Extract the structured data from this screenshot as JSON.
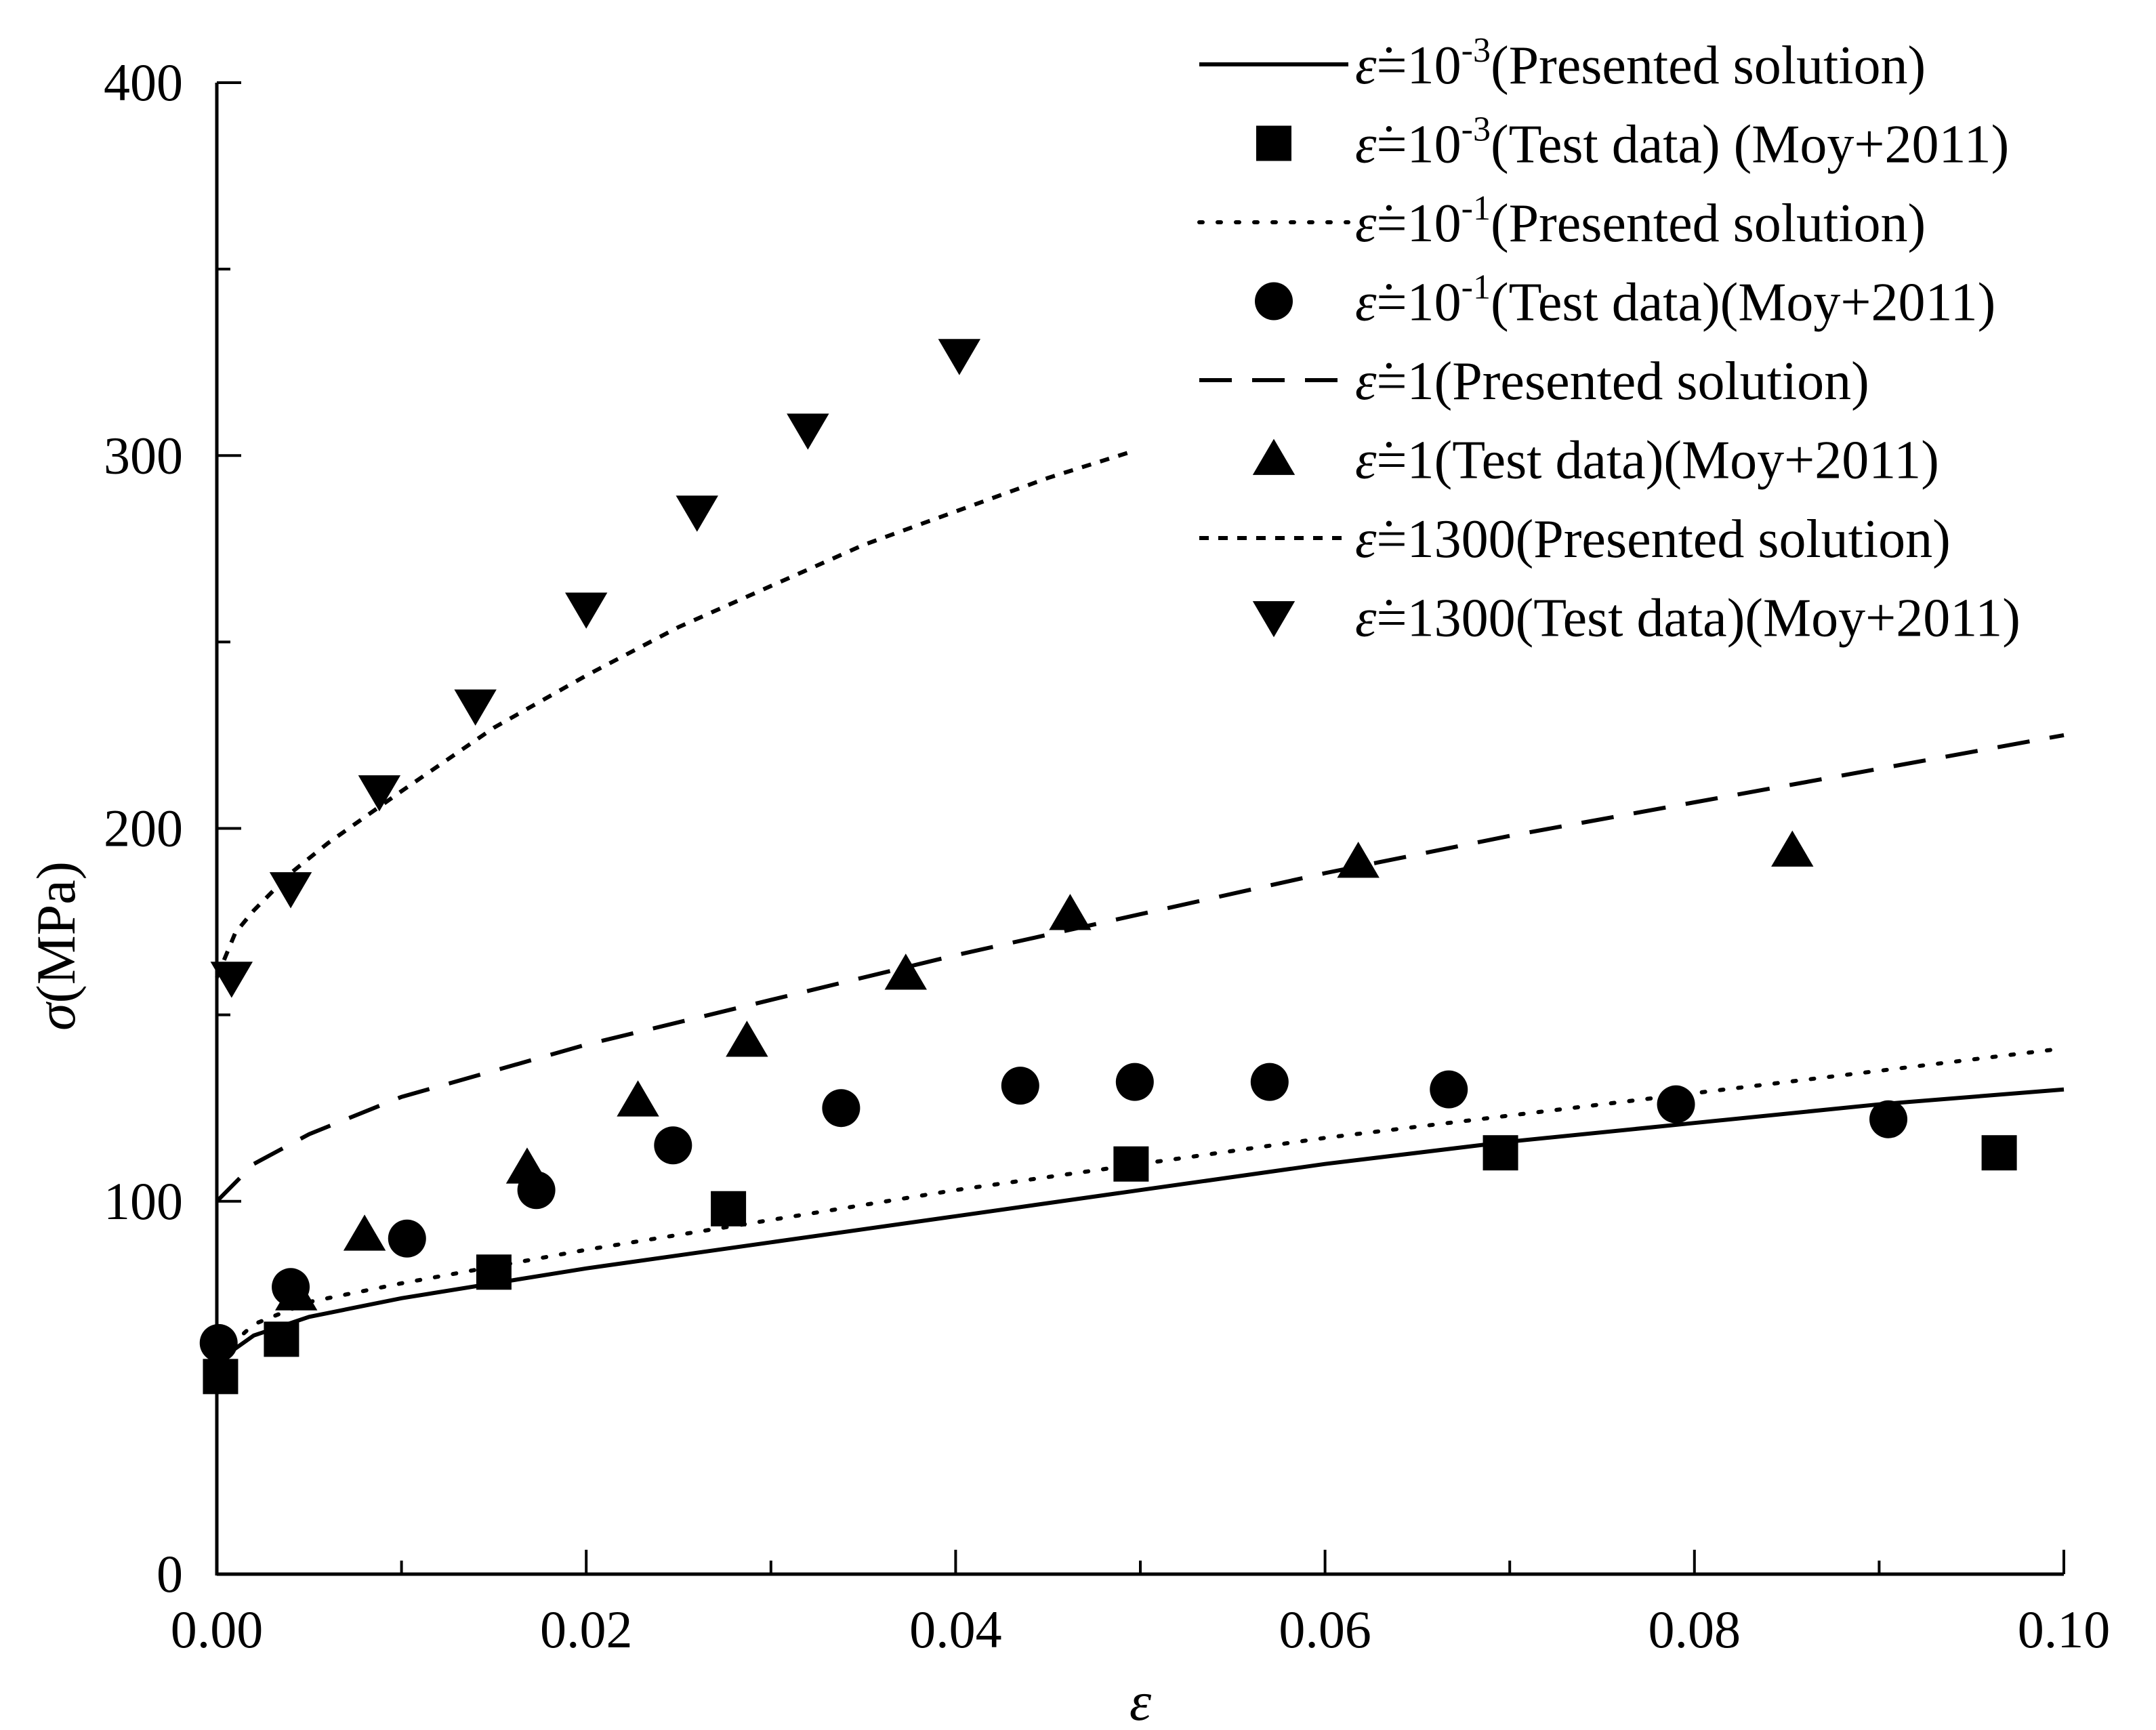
{
  "chart_data": {
    "type": "line",
    "xlabel": "ε",
    "ylabel_symbol": "σ",
    "ylabel_unit": "(MPa)",
    "xlim": [
      0,
      0.1
    ],
    "ylim": [
      0,
      400
    ],
    "x_ticks": [
      0,
      0.02,
      0.04,
      0.06,
      0.08,
      0.1
    ],
    "x_tick_labels": [
      "0.00",
      "0.02",
      "0.04",
      "0.06",
      "0.08",
      "0.10"
    ],
    "y_ticks": [
      0,
      100,
      200,
      300,
      400
    ],
    "y_tick_labels": [
      "0",
      "100",
      "200",
      "300",
      "400"
    ],
    "grid": false,
    "legend_position": "top-right",
    "series": [
      {
        "kind": "line",
        "style": "solid",
        "rate_symbol": "ε̇",
        "rate": "=10",
        "exponent": "-3",
        "label": "(Presented solution)",
        "x": [
          0,
          0.002,
          0.005,
          0.01,
          0.02,
          0.03,
          0.04,
          0.05,
          0.06,
          0.07,
          0.08,
          0.09,
          0.1
        ],
        "y": [
          57,
          64,
          69,
          74,
          82,
          89,
          96,
          103,
          110,
          116,
          121,
          126,
          130
        ]
      },
      {
        "kind": "marker",
        "marker": "square",
        "rate_symbol": "ε̇",
        "rate": "=10",
        "exponent": "-3",
        "label": "(Test data) (Moy+2011)",
        "x": [
          0.0002,
          0.0035,
          0.015,
          0.0277,
          0.0495,
          0.0695,
          0.0965
        ],
        "y": [
          53,
          63,
          81,
          98,
          110,
          113,
          113
        ]
      },
      {
        "kind": "line",
        "style": "dotted",
        "rate_symbol": "ε̇",
        "rate": "=10",
        "exponent": "-1",
        "label": "(Presented solution)",
        "x": [
          0,
          0.002,
          0.005,
          0.01,
          0.02,
          0.03,
          0.04,
          0.05,
          0.06,
          0.07,
          0.08,
          0.09,
          0.1
        ],
        "y": [
          58,
          67,
          73,
          78,
          87,
          95,
          103,
          110,
          117,
          123,
          129,
          135,
          141
        ]
      },
      {
        "kind": "marker",
        "marker": "circle",
        "rate_symbol": "ε̇",
        "rate": "=10",
        "exponent": "-1",
        "label": "(Test data)(Moy+2011)",
        "x": [
          0.0001,
          0.004,
          0.0103,
          0.0173,
          0.0247,
          0.0338,
          0.0435,
          0.0497,
          0.057,
          0.0667,
          0.079,
          0.0905
        ],
        "y": [
          62,
          77,
          90,
          103,
          115,
          125,
          131,
          132,
          132,
          130,
          126,
          122
        ]
      },
      {
        "kind": "line",
        "style": "dashed",
        "rate_symbol": "ε̇",
        "rate": "=1",
        "exponent": "",
        "label": "(Presented solution)",
        "x": [
          0,
          0.002,
          0.005,
          0.01,
          0.015,
          0.02,
          0.03,
          0.04,
          0.05,
          0.06,
          0.07,
          0.08,
          0.09,
          0.1
        ],
        "y": [
          100,
          110,
          118,
          128,
          135,
          142,
          154,
          166,
          177,
          188,
          198,
          207,
          216,
          225
        ]
      },
      {
        "kind": "marker",
        "marker": "triangle-up",
        "rate_symbol": "ε̇",
        "rate": "=1",
        "exponent": "",
        "label": "(Test data)(Moy+2011)",
        "x": [
          0.0043,
          0.008,
          0.0168,
          0.0228,
          0.0287,
          0.0373,
          0.0462,
          0.0618,
          0.0853
        ],
        "y": [
          75,
          91,
          109,
          127,
          143,
          161,
          177,
          191,
          194
        ]
      },
      {
        "kind": "line",
        "style": "short-dashed",
        "rate_symbol": "ε̇",
        "rate": "=1300",
        "exponent": "",
        "label": "(Presented solution)",
        "x": [
          0,
          0.0005,
          0.001,
          0.002,
          0.004,
          0.006,
          0.01,
          0.015,
          0.02,
          0.025,
          0.03,
          0.035,
          0.04,
          0.045,
          0.0495
        ],
        "y": [
          160,
          166,
          172,
          178,
          188,
          196,
          210,
          227,
          241,
          254,
          265,
          276,
          285,
          294,
          301
        ]
      },
      {
        "kind": "marker",
        "marker": "triangle-down",
        "rate_symbol": "ε̇",
        "rate": "=1300",
        "exponent": "",
        "label": "(Test data)(Moy+2011)",
        "x": [
          0.0008,
          0.004,
          0.0088,
          0.014,
          0.02,
          0.026,
          0.032,
          0.0402
        ],
        "y": [
          160,
          184,
          210,
          233,
          259,
          285,
          307,
          327
        ]
      }
    ]
  }
}
